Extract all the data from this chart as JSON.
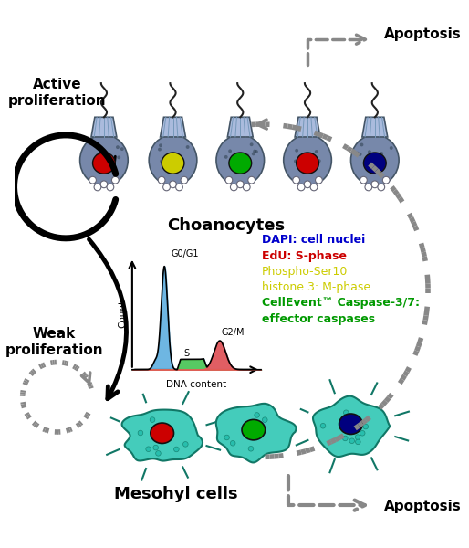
{
  "bg_color": "#ffffff",
  "legend_lines": [
    {
      "text": "DAPI: cell nuclei",
      "color": "#0000cc",
      "bold": true
    },
    {
      "text": "EdU: S-phase",
      "color": "#cc0000",
      "bold": true
    },
    {
      "text": "Phospho-Ser10",
      "color": "#cccc00",
      "bold": false
    },
    {
      "text": "histone 3: M-phase",
      "color": "#cccc00",
      "bold": false
    },
    {
      "text": "CellEvent™ Caspase-3/7:",
      "color": "#009900",
      "bold": true
    },
    {
      "text": "effector caspases",
      "color": "#009900",
      "bold": true
    }
  ],
  "choanocyte_label": "Choanocytes",
  "mesohyl_label": "Mesohyl cells",
  "active_label": "Active\nproliferation",
  "weak_label": "Weak\nproliferation",
  "apoptosis_label": "Apoptosis",
  "nucleus_colors_choan": [
    "#cc0000",
    "#cccc00",
    "#00aa00",
    "#cc0000",
    "#00007f"
  ],
  "mesohyl_nucleus_colors": [
    "#cc0000",
    "#00aa00",
    "#000099"
  ],
  "choanocyte_body_color": "#7788aa",
  "choanocyte_collar_color": "#aabbdd",
  "mesohyl_body_color": "#44ccbb",
  "graph_peak_color": "#55aadd",
  "graph_s_color": "#55cc55",
  "graph_g2m_color": "#ee5555",
  "arrow_gray": "#888888",
  "arrow_black": "#111111"
}
